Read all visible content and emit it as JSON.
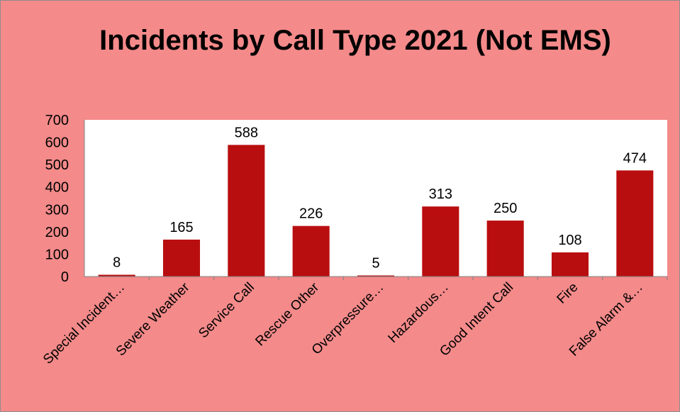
{
  "chart_data": {
    "type": "bar",
    "title": "Incidents by Call Type 2021 (Not EMS)",
    "categories": [
      "Special Incident…",
      "Severe Weather",
      "Service Call",
      "Rescue Other",
      "Overpressure…",
      "Hazardous…",
      "Good Intent Call",
      "Fire",
      "False Alarm &…"
    ],
    "values": [
      8,
      165,
      588,
      226,
      5,
      313,
      250,
      108,
      474
    ],
    "ylim": [
      0,
      700
    ],
    "yticks": [
      "0",
      "100",
      "200",
      "300",
      "400",
      "500",
      "600",
      "700"
    ],
    "xlabel": "",
    "ylabel": "",
    "grid": false,
    "legend": "none",
    "bar_color": "#b90e0f",
    "background_color": "#f48a8a",
    "plot_background": "#ffffff"
  }
}
